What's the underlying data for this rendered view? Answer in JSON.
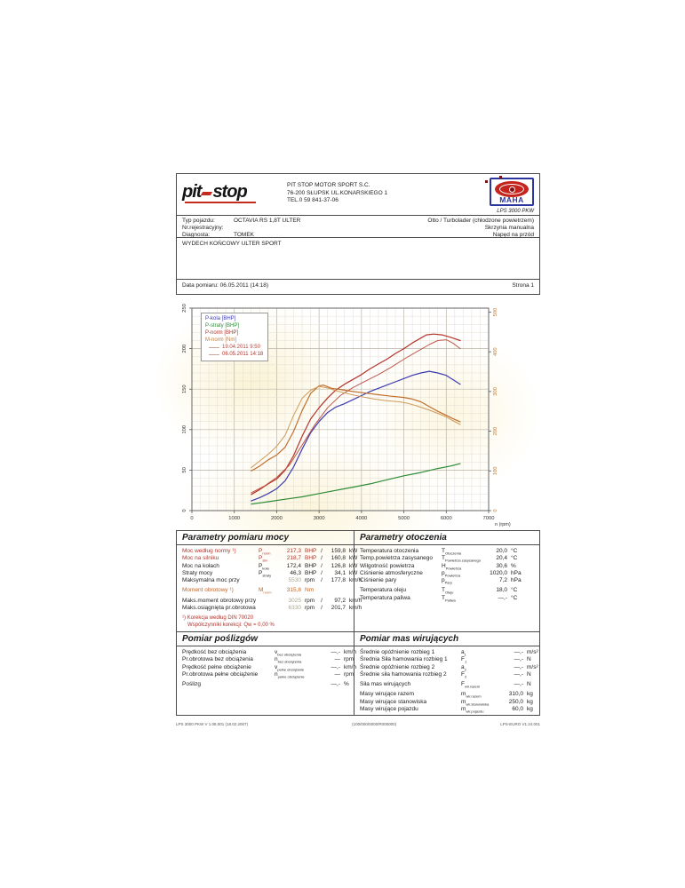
{
  "page": {
    "header": {
      "logo_pit": "pit",
      "logo_stop": "stop",
      "company_lines": [
        "PIT STOP MOTOR SPORT S.C.",
        "76-200 SŁUPSK UL.KONARSKIEGO 1",
        "TEL.0 59 841-37-06"
      ],
      "device_logo": "MAHA",
      "device_model": "LPS 3000 PKW"
    },
    "vehicle": {
      "rows": [
        {
          "label": "Typ pojazdu:",
          "value": "OCTAVIA RS 1,8T ULTER",
          "right": "Otto / Turbolader (chłodzone powietrzem)"
        },
        {
          "label": "Nr.rejestracyjny:",
          "value": "",
          "right": "Skrzynia manualna"
        },
        {
          "label": "Diagnosta:",
          "value": "TOMEK",
          "right": "Napęd na przód"
        }
      ],
      "comment": "WYDECH KOŃCOWY ULTER SPORT"
    },
    "measurement": {
      "date_label": "Data pomiaru: 06.05.2011 (14:18)",
      "page_label": "Strona 1"
    }
  },
  "chart_data": {
    "type": "line",
    "xlabel": "n (rpm)",
    "x_range": [
      0,
      7000
    ],
    "x_tick_step": 1000,
    "x_minor_step": 200,
    "left_axis": {
      "range": [
        0,
        250
      ],
      "tick_step": 50,
      "minor_step": 10,
      "unit": "BHP"
    },
    "right_axis": {
      "range": [
        0,
        510
      ],
      "ticks": [
        0,
        100,
        200,
        300,
        400,
        500
      ],
      "unit": "Nm",
      "color": "#c07a36"
    },
    "legend": [
      {
        "label": "P-kola [BHP]",
        "color": "#3c3cae",
        "marker": "none"
      },
      {
        "label": "P-straty [BHP]",
        "color": "#2d8a35",
        "marker": "none"
      },
      {
        "label": "P-norm [BHP]",
        "color": "#b5332a",
        "marker": "none"
      },
      {
        "label": "M-norm [Nm]",
        "color": "#c07a36",
        "marker": "none"
      },
      {
        "label": "19.04.2011 9:50",
        "color": "#b5433a",
        "marker": "line"
      },
      {
        "label": "06.05.2011 14:18",
        "color": "#b5332a",
        "marker": "line"
      }
    ],
    "series": [
      {
        "name": "P-kola [BHP] 06.05.2011",
        "color": "#3c3cae",
        "axis": "left",
        "width": 1.2,
        "points": [
          [
            1400,
            12
          ],
          [
            1600,
            16
          ],
          [
            1800,
            21
          ],
          [
            2000,
            27
          ],
          [
            2200,
            37
          ],
          [
            2400,
            54
          ],
          [
            2600,
            76
          ],
          [
            2800,
            96
          ],
          [
            3000,
            110
          ],
          [
            3200,
            121
          ],
          [
            3400,
            128
          ],
          [
            3600,
            132
          ],
          [
            3800,
            137
          ],
          [
            4000,
            142
          ],
          [
            4200,
            147
          ],
          [
            4400,
            151
          ],
          [
            4600,
            155
          ],
          [
            4800,
            159
          ],
          [
            5000,
            163
          ],
          [
            5200,
            167
          ],
          [
            5400,
            170
          ],
          [
            5600,
            172
          ],
          [
            5800,
            170
          ],
          [
            6000,
            167
          ],
          [
            6150,
            162
          ],
          [
            6330,
            156
          ]
        ]
      },
      {
        "name": "P-straty [BHP] 06.05.2011",
        "color": "#2d8a35",
        "axis": "left",
        "width": 1.2,
        "points": [
          [
            1400,
            8
          ],
          [
            1800,
            11
          ],
          [
            2200,
            14
          ],
          [
            2600,
            17
          ],
          [
            3000,
            21
          ],
          [
            3400,
            25
          ],
          [
            3800,
            29
          ],
          [
            4200,
            33
          ],
          [
            4600,
            38
          ],
          [
            5000,
            43
          ],
          [
            5400,
            47
          ],
          [
            5800,
            52
          ],
          [
            6100,
            55
          ],
          [
            6330,
            58
          ]
        ]
      },
      {
        "name": "P-norm [BHP] 06.05.2011",
        "color": "#b5332a",
        "axis": "left",
        "width": 1.2,
        "points": [
          [
            1400,
            20
          ],
          [
            1600,
            26
          ],
          [
            1800,
            33
          ],
          [
            2000,
            39
          ],
          [
            2200,
            50
          ],
          [
            2400,
            68
          ],
          [
            2600,
            92
          ],
          [
            2800,
            113
          ],
          [
            3000,
            127
          ],
          [
            3200,
            139
          ],
          [
            3400,
            149
          ],
          [
            3600,
            156
          ],
          [
            3800,
            162
          ],
          [
            4000,
            168
          ],
          [
            4200,
            175
          ],
          [
            4400,
            181
          ],
          [
            4600,
            187
          ],
          [
            4800,
            194
          ],
          [
            5000,
            200
          ],
          [
            5200,
            207
          ],
          [
            5400,
            213
          ],
          [
            5530,
            217
          ],
          [
            5700,
            218
          ],
          [
            5900,
            217
          ],
          [
            6100,
            214
          ],
          [
            6330,
            210
          ]
        ]
      },
      {
        "name": "P-norm [BHP] 19.04.2011",
        "color": "#c0564a",
        "axis": "left",
        "width": 1,
        "points": [
          [
            1400,
            22
          ],
          [
            1700,
            30
          ],
          [
            2000,
            41
          ],
          [
            2300,
            56
          ],
          [
            2600,
            81
          ],
          [
            2900,
            106
          ],
          [
            3200,
            127
          ],
          [
            3500,
            142
          ],
          [
            3800,
            152
          ],
          [
            4100,
            160
          ],
          [
            4400,
            168
          ],
          [
            4700,
            177
          ],
          [
            5000,
            187
          ],
          [
            5300,
            196
          ],
          [
            5600,
            205
          ],
          [
            5800,
            210
          ],
          [
            6000,
            211
          ],
          [
            6150,
            207
          ],
          [
            6330,
            200
          ]
        ]
      },
      {
        "name": "M-norm [Nm] 06.05.2011",
        "color": "#c0702e",
        "axis": "right",
        "width": 1.2,
        "points": [
          [
            1400,
            100
          ],
          [
            1600,
            112
          ],
          [
            1800,
            128
          ],
          [
            2000,
            140
          ],
          [
            2200,
            160
          ],
          [
            2400,
            200
          ],
          [
            2600,
            252
          ],
          [
            2800,
            295
          ],
          [
            3000,
            314
          ],
          [
            3100,
            316
          ],
          [
            3300,
            308
          ],
          [
            3500,
            305
          ],
          [
            3800,
            300
          ],
          [
            4100,
            296
          ],
          [
            4400,
            292
          ],
          [
            4700,
            288
          ],
          [
            5000,
            285
          ],
          [
            5200,
            281
          ],
          [
            5400,
            274
          ],
          [
            5600,
            262
          ],
          [
            5800,
            250
          ],
          [
            6000,
            240
          ],
          [
            6150,
            232
          ],
          [
            6330,
            224
          ]
        ]
      },
      {
        "name": "M-norm [Nm] 19.04.2011",
        "color": "#cf9a58",
        "axis": "right",
        "width": 1,
        "points": [
          [
            1400,
            108
          ],
          [
            1600,
            125
          ],
          [
            1800,
            142
          ],
          [
            2000,
            162
          ],
          [
            2200,
            190
          ],
          [
            2400,
            240
          ],
          [
            2600,
            283
          ],
          [
            2800,
            303
          ],
          [
            3000,
            313
          ],
          [
            3200,
            309
          ],
          [
            3400,
            302
          ],
          [
            3700,
            294
          ],
          [
            4000,
            287
          ],
          [
            4300,
            281
          ],
          [
            4600,
            277
          ],
          [
            4900,
            274
          ],
          [
            5100,
            270
          ],
          [
            5300,
            264
          ],
          [
            5600,
            253
          ],
          [
            5800,
            245
          ],
          [
            6000,
            236
          ],
          [
            6150,
            227
          ],
          [
            6330,
            217
          ]
        ]
      }
    ]
  },
  "sections": {
    "power": {
      "title": "Parametry pomiaru mocy",
      "rows": [
        {
          "label": "Moc według normy ¹)",
          "sym": "P",
          "sub": "norm",
          "v1": "217,3",
          "u1": "BHP",
          "v2": "159,8",
          "u2": "kW",
          "color": "red"
        },
        {
          "label": "Moc na silniku",
          "sym": "P",
          "sub": "siln",
          "v1": "218,7",
          "u1": "BHP",
          "v2": "160,8",
          "u2": "kW",
          "color": "red"
        },
        {
          "label": "Moc na kołach",
          "sym": "P",
          "sub": "koła",
          "v1": "172,4",
          "u1": "BHP",
          "v2": "126,8",
          "u2": "kW"
        },
        {
          "label": "Straty mocy",
          "sym": "P",
          "sub": "straty",
          "v1": "46,3",
          "u1": "BHP",
          "v2": "34,1",
          "u2": "kW"
        },
        {
          "label": "Maksymalna moc przy",
          "sym": "",
          "sub": "",
          "v1": "5530",
          "u1": "rpm",
          "v2": "177,8",
          "u2": "km/h",
          "light": true
        },
        {
          "label": "Moment obrotowy ¹)",
          "sym": "M",
          "sub": "norm",
          "v1": "315,8",
          "u1": "Nm",
          "v2": "",
          "u2": "",
          "color": "orange",
          "gap": true
        },
        {
          "label": "Maks.moment obrotowy przy",
          "sym": "",
          "sub": "",
          "v1": "3025",
          "u1": "rpm",
          "v2": "97,2",
          "u2": "km/h",
          "light": true,
          "gap": true
        },
        {
          "label": "Maks.osiągnięta pr.obrotowa",
          "sym": "",
          "sub": "",
          "v1": "6330",
          "u1": "rpm",
          "v2": "201,7",
          "u2": "km/h",
          "light": true
        }
      ],
      "footnotes": [
        "¹) Korekcja według DIN 70020",
        "Współczynniki korekcji: Qw =  0,00 %"
      ]
    },
    "environment": {
      "title": "Parametry otoczenia",
      "rows": [
        {
          "label": "Temperatura otoczenia",
          "sym": "T",
          "sub": "Otoczenia",
          "v1": "20,0",
          "u1": "°C"
        },
        {
          "label": "Temp.powietrza zasysanego",
          "sym": "T",
          "sub": "Powietrza zasysanego",
          "v1": "20,4",
          "u1": "°C"
        },
        {
          "label": "Wilgotność powietrza",
          "sym": "H",
          "sub": "Powietrza",
          "v1": "30,6",
          "u1": "%"
        },
        {
          "label": "Ciśnienie atmosferyczne",
          "sym": "p",
          "sub": "Powietrza",
          "v1": "1020,0",
          "u1": "hPa"
        },
        {
          "label": "Ciśnienie pary",
          "sym": "p",
          "sub": "Pary",
          "v1": "7,2",
          "u1": "hPa"
        },
        {
          "label": "Temperatura oleju",
          "sym": "T",
          "sub": "Oleju",
          "v1": "18,0",
          "u1": "°C",
          "gap": true
        },
        {
          "label": "Temperatura paliwa",
          "sym": "T",
          "sub": "Paliwa",
          "v1": "—,-",
          "u1": "°C"
        }
      ]
    },
    "slip": {
      "title": "Pomiar poślizgów",
      "rows": [
        {
          "label": "Prędkość bez obciążenia",
          "sym": "v",
          "sub": "bez obciążenia",
          "v1": "—,-",
          "u1": "km/h"
        },
        {
          "label": "Pr.obrotowa bez obciążenia",
          "sym": "n",
          "sub": "bez obciążenia",
          "v1": "—",
          "u1": "rpm"
        },
        {
          "label": "Prędkość pełne obciążenie",
          "sym": "v",
          "sub": "pełne obciążenie",
          "v1": "—,-",
          "u1": "km/h"
        },
        {
          "label": "Pr.obrotowa pełne obciążenie",
          "sym": "n",
          "sub": "pełne obciążenie",
          "v1": "—",
          "u1": "rpm"
        },
        {
          "label": "Poślizg",
          "sym": "",
          "sub": "",
          "v1": "—,-",
          "u1": "%",
          "gap": true
        }
      ]
    },
    "masses": {
      "title": "Pomiar mas wirujących",
      "rows": [
        {
          "label": "Średnie opóźnienie rozbieg 1",
          "sym": "a",
          "sub": "1",
          "v1": "—,-",
          "u1": "m/s²"
        },
        {
          "label": "Średnia Siła hamowania rozbieg 1",
          "sym": "F",
          "sub": "1",
          "v1": "—,-",
          "u1": "N"
        },
        {
          "label": "Średnie opóźnienie rozbieg 2",
          "sym": "a",
          "sub": "2",
          "v1": "—,-",
          "u1": "m/s²"
        },
        {
          "label": "Średnie siła hamowania rozbieg 2",
          "sym": "F",
          "sub": "2",
          "v1": "—,-",
          "u1": "N"
        },
        {
          "label": "Siła mas wirujących",
          "sym": "F",
          "sub": "wir.razem",
          "v1": "—,-",
          "u1": "N",
          "gap": true
        },
        {
          "label": "Masy wirujące razem",
          "sym": "m",
          "sub": "wir.razem",
          "v1": "310,0",
          "u1": "kg",
          "gap": true
        },
        {
          "label": "Masy wirujące stanowiska",
          "sym": "m",
          "sub": "wir.stanowiska",
          "v1": "250,0",
          "u1": "kg"
        },
        {
          "label": "Masy wirujące pojazdu",
          "sym": "m",
          "sub": "wir.pojazdu",
          "v1": "60,0",
          "u1": "kg"
        }
      ]
    }
  },
  "footer": {
    "left": "LPS 3000 PKW V 1.08.001 (18.02.2007)",
    "center": "(100/000/0000/R000000)",
    "right": "LPS-EURO V1.24.001"
  }
}
